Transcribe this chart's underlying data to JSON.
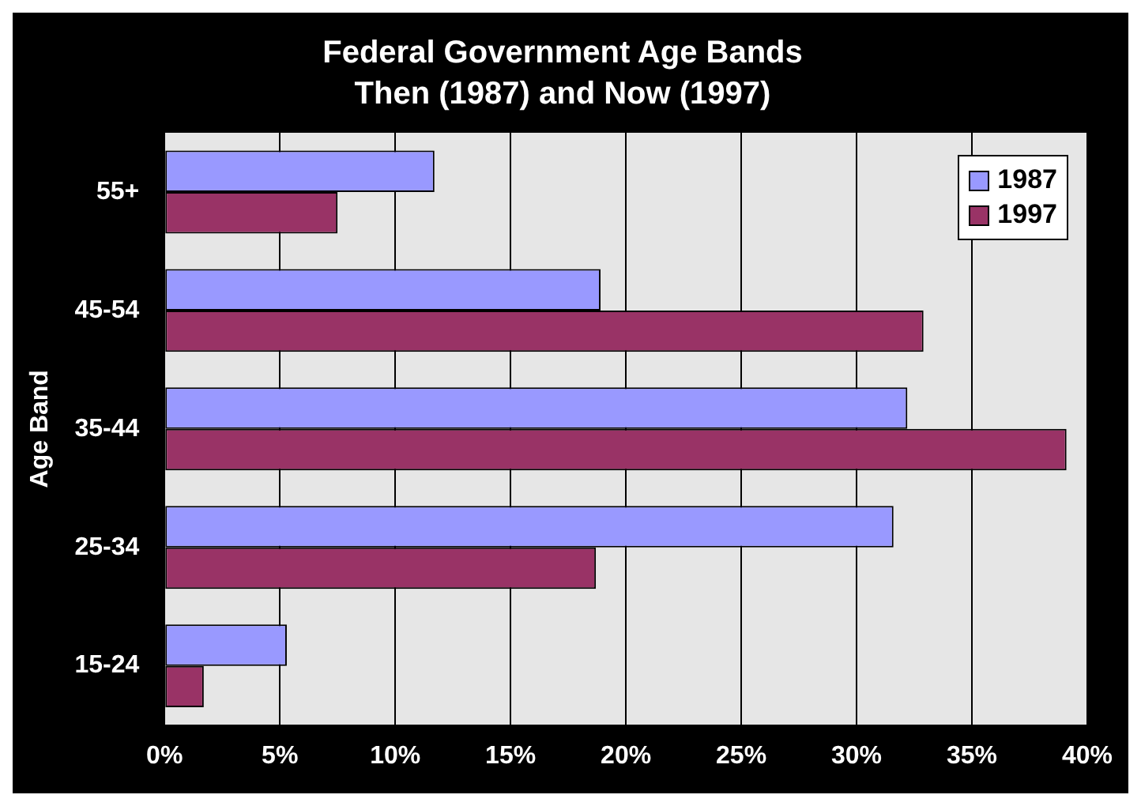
{
  "chart_data": {
    "type": "bar",
    "orientation": "horizontal",
    "title": "Federal Government Age Bands",
    "subtitle": "Then (1987) and Now (1997)",
    "ylabel": "Age Band",
    "categories": [
      "55+",
      "45-54",
      "35-44",
      "25-34",
      "15-24"
    ],
    "series": [
      {
        "name": "1987",
        "color": "#9999ff",
        "values": [
          11.7,
          18.9,
          32.2,
          31.6,
          5.3
        ]
      },
      {
        "name": "1997",
        "color": "#993366",
        "values": [
          7.5,
          32.9,
          39.1,
          18.7,
          1.7
        ]
      }
    ],
    "xlim": [
      0,
      40
    ],
    "xticks": [
      {
        "value": 0,
        "label": "0%"
      },
      {
        "value": 5,
        "label": "5%"
      },
      {
        "value": 10,
        "label": "10%"
      },
      {
        "value": 15,
        "label": "15%"
      },
      {
        "value": 20,
        "label": "20%"
      },
      {
        "value": 25,
        "label": "25%"
      },
      {
        "value": 30,
        "label": "30%"
      },
      {
        "value": 35,
        "label": "35%"
      },
      {
        "value": 40,
        "label": "40%"
      }
    ],
    "grid": "x",
    "legend": "top right"
  }
}
